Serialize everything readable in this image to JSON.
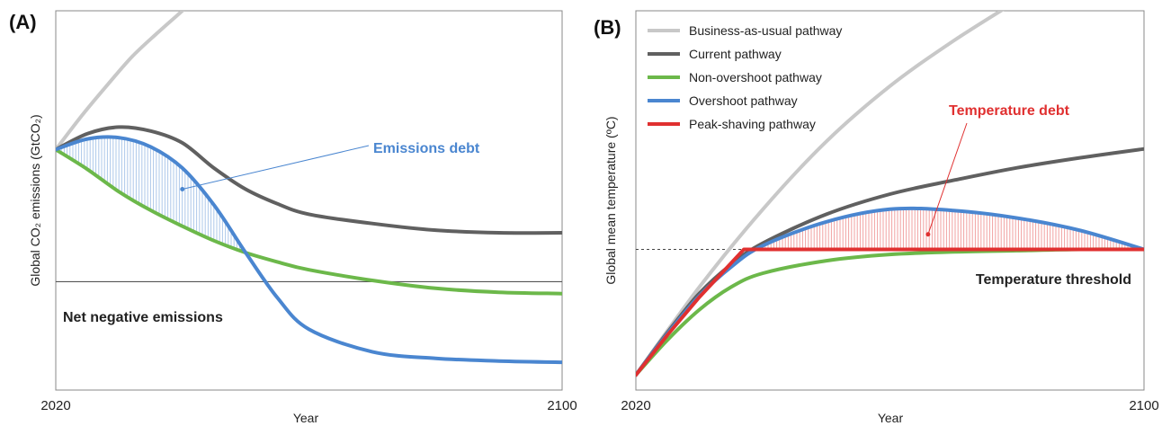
{
  "chart_data": [
    {
      "panel": "(A)",
      "type": "line",
      "title": "",
      "xlabel": "Year",
      "ylabel": "Global CO₂ emissions (GtCO₂)",
      "xlim": [
        2020,
        2100
      ],
      "x_ticks": [
        "2020",
        "2100"
      ],
      "y_ticks_shown": false,
      "reference_line": {
        "label": "Net negative emissions",
        "y": 0
      },
      "shaded_region": {
        "label": "Emissions debt",
        "between": [
          "Overshoot pathway",
          "Non-overshoot pathway"
        ],
        "color": "#4a86d0"
      },
      "series": [
        {
          "name": "Business-as-usual pathway",
          "color": "#c8c8c8",
          "x": [
            2020,
            2024,
            2028,
            2032,
            2036,
            2040
          ],
          "y": [
            1.0,
            1.25,
            1.48,
            1.7,
            1.88,
            2.05
          ]
        },
        {
          "name": "Current pathway",
          "color": "#606060",
          "x": [
            2020,
            2025,
            2030,
            2035,
            2040,
            2045,
            2050,
            2055,
            2060,
            2070,
            2080,
            2090,
            2100
          ],
          "y": [
            1.0,
            1.12,
            1.17,
            1.14,
            1.05,
            0.86,
            0.7,
            0.59,
            0.51,
            0.44,
            0.39,
            0.37,
            0.37
          ]
        },
        {
          "name": "Overshoot pathway",
          "color": "#4a86d0",
          "x": [
            2020,
            2025,
            2030,
            2035,
            2040,
            2045,
            2050,
            2055,
            2060,
            2070,
            2080,
            2090,
            2100
          ],
          "y": [
            1.0,
            1.08,
            1.09,
            1.02,
            0.86,
            0.58,
            0.22,
            -0.12,
            -0.36,
            -0.53,
            -0.58,
            -0.6,
            -0.61
          ]
        },
        {
          "name": "Non-overshoot pathway",
          "color": "#6cb84a",
          "x": [
            2020,
            2025,
            2030,
            2035,
            2040,
            2045,
            2050,
            2055,
            2060,
            2070,
            2080,
            2090,
            2100
          ],
          "y": [
            1.0,
            0.85,
            0.68,
            0.54,
            0.42,
            0.31,
            0.22,
            0.15,
            0.09,
            0.01,
            -0.05,
            -0.08,
            -0.09
          ]
        }
      ]
    },
    {
      "panel": "(B)",
      "type": "line",
      "title": "",
      "xlabel": "Year",
      "ylabel": "Global mean temperature (ºC)",
      "xlim": [
        2020,
        2100
      ],
      "x_ticks": [
        "2020",
        "2100"
      ],
      "y_ticks_shown": false,
      "reference_line": {
        "label": "Temperature threshold",
        "y": 1.0,
        "style": "dashed"
      },
      "shaded_region": {
        "label": "Temperature debt",
        "between": [
          "Overshoot pathway",
          "Peak-shaving pathway"
        ],
        "color": "#e03030"
      },
      "legend": {
        "placement": "top-left"
      },
      "series": [
        {
          "name": "Business-as-usual pathway",
          "color": "#c8c8c8",
          "x": [
            2020,
            2030,
            2040,
            2050,
            2060,
            2070,
            2080
          ],
          "y": [
            0.0,
            0.7,
            1.32,
            1.86,
            2.3,
            2.66,
            2.98
          ]
        },
        {
          "name": "Current pathway",
          "color": "#606060",
          "x": [
            2020,
            2025,
            2030,
            2035,
            2040,
            2050,
            2060,
            2070,
            2080,
            2090,
            2100
          ],
          "y": [
            0.0,
            0.34,
            0.65,
            0.88,
            1.05,
            1.28,
            1.44,
            1.55,
            1.65,
            1.73,
            1.8
          ]
        },
        {
          "name": "Non-overshoot pathway",
          "color": "#6cb84a",
          "x": [
            2020,
            2025,
            2030,
            2035,
            2040,
            2050,
            2060,
            2070,
            2080,
            2090,
            2100
          ],
          "y": [
            0.0,
            0.28,
            0.52,
            0.7,
            0.81,
            0.91,
            0.96,
            0.98,
            0.99,
            1.0,
            1.0
          ]
        },
        {
          "name": "Overshoot pathway",
          "color": "#4a86d0",
          "x": [
            2020,
            2025,
            2030,
            2035,
            2040,
            2050,
            2060,
            2070,
            2080,
            2090,
            2100
          ],
          "y": [
            0.0,
            0.33,
            0.63,
            0.86,
            1.03,
            1.22,
            1.32,
            1.31,
            1.25,
            1.15,
            1.0
          ]
        },
        {
          "name": "Peak-shaving pathway",
          "color": "#e03030",
          "x": [
            2020,
            2025,
            2030,
            2037,
            2050,
            2070,
            2100
          ],
          "y": [
            0.0,
            0.32,
            0.62,
            1.0,
            1.0,
            1.0,
            1.0
          ]
        }
      ]
    }
  ]
}
